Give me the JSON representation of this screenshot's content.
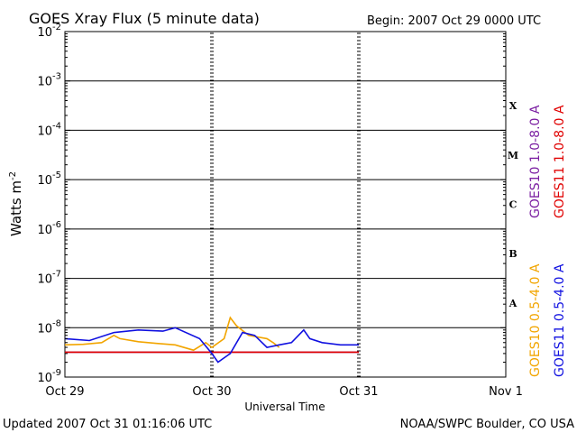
{
  "title": "GOES Xray Flux (5 minute data)",
  "begin": "Begin:  2007 Oct 29 0000 UTC",
  "updated": "Updated 2007 Oct 31 01:16:06 UTC",
  "source": "NOAA/SWPC Boulder, CO USA",
  "xlabel": "Universal Time",
  "ylabel": "Watts m",
  "ylabel_sup": "-2",
  "colors": {
    "goes10_long": "#7b1fa2",
    "goes11_long": "#e00000",
    "goes10_short": "#f2a500",
    "goes11_short": "#1010e0",
    "grid": "#000000"
  },
  "chart_data": {
    "type": "line",
    "title": "GOES Xray Flux (5 minute data)",
    "xlabel": "Universal Time",
    "ylabel": "Watts m-2",
    "yscale": "log",
    "ylim": [
      1e-09,
      0.01
    ],
    "xlim": [
      "2007-10-29 00:00",
      "2007-11-01 00:00"
    ],
    "x_ticks": [
      "Oct 29",
      "Oct 30",
      "Oct 31",
      "Nov 1"
    ],
    "y_ticks": [
      {
        "base": "10",
        "exp": "-9"
      },
      {
        "base": "10",
        "exp": "-8"
      },
      {
        "base": "10",
        "exp": "-7"
      },
      {
        "base": "10",
        "exp": "-6"
      },
      {
        "base": "10",
        "exp": "-5"
      },
      {
        "base": "10",
        "exp": "-4"
      },
      {
        "base": "10",
        "exp": "-3"
      },
      {
        "base": "10",
        "exp": "-2"
      }
    ],
    "flare_classes": [
      "A",
      "B",
      "C",
      "M",
      "X"
    ],
    "grid": true,
    "series": [
      {
        "name": "GOES10 1.0-8.0 A",
        "color": "#7b1fa2",
        "x": [
          "2007-10-29 00:00",
          "2007-10-30 12:00",
          "2007-10-31 00:00"
        ],
        "y": [
          3.2e-09,
          3.2e-09,
          3.2e-09
        ]
      },
      {
        "name": "GOES11 1.0-8.0 A",
        "color": "#e00000",
        "x": [
          "2007-10-29 00:00",
          "2007-10-30 12:00",
          "2007-10-31 00:00"
        ],
        "y": [
          3.2e-09,
          3.2e-09,
          3.2e-09
        ]
      },
      {
        "name": "GOES10 0.5-4.0 A",
        "color": "#f2a500",
        "x": [
          "2007-10-29 00:00",
          "2007-10-29 03:00",
          "2007-10-29 06:00",
          "2007-10-29 08:00",
          "2007-10-29 09:00",
          "2007-10-29 12:00",
          "2007-10-29 15:00",
          "2007-10-29 18:00",
          "2007-10-29 21:00",
          "2007-10-29 23:00",
          "2007-10-30 00:00",
          "2007-10-30 02:00",
          "2007-10-30 03:00",
          "2007-10-30 04:00",
          "2007-10-30 06:00",
          "2007-10-30 09:00",
          "2007-10-30 10:00",
          "2007-10-30 11:00"
        ],
        "y": [
          4.5e-09,
          4.6e-09,
          5e-09,
          7e-09,
          6e-09,
          5.2e-09,
          4.8e-09,
          4.5e-09,
          3.5e-09,
          5e-09,
          4e-09,
          6e-09,
          1.6e-08,
          1.1e-08,
          7e-09,
          6e-09,
          5e-09,
          4e-09
        ]
      },
      {
        "name": "GOES11 0.5-4.0 A",
        "color": "#1010e0",
        "x": [
          "2007-10-29 00:00",
          "2007-10-29 04:00",
          "2007-10-29 08:00",
          "2007-10-29 12:00",
          "2007-10-29 16:00",
          "2007-10-29 18:00",
          "2007-10-29 22:00",
          "2007-10-30 00:00",
          "2007-10-30 01:00",
          "2007-10-30 03:00",
          "2007-10-30 05:00",
          "2007-10-30 07:00",
          "2007-10-30 09:00",
          "2007-10-30 11:00",
          "2007-10-30 13:00",
          "2007-10-30 15:00",
          "2007-10-30 16:00",
          "2007-10-30 18:00",
          "2007-10-30 21:00",
          "2007-10-31 00:00"
        ],
        "y": [
          6e-09,
          5.5e-09,
          8e-09,
          9e-09,
          8.5e-09,
          1e-08,
          6e-09,
          3e-09,
          2e-09,
          3e-09,
          8e-09,
          7e-09,
          4e-09,
          4.5e-09,
          5e-09,
          9e-09,
          6e-09,
          5e-09,
          4.5e-09,
          4.5e-09
        ]
      }
    ]
  }
}
